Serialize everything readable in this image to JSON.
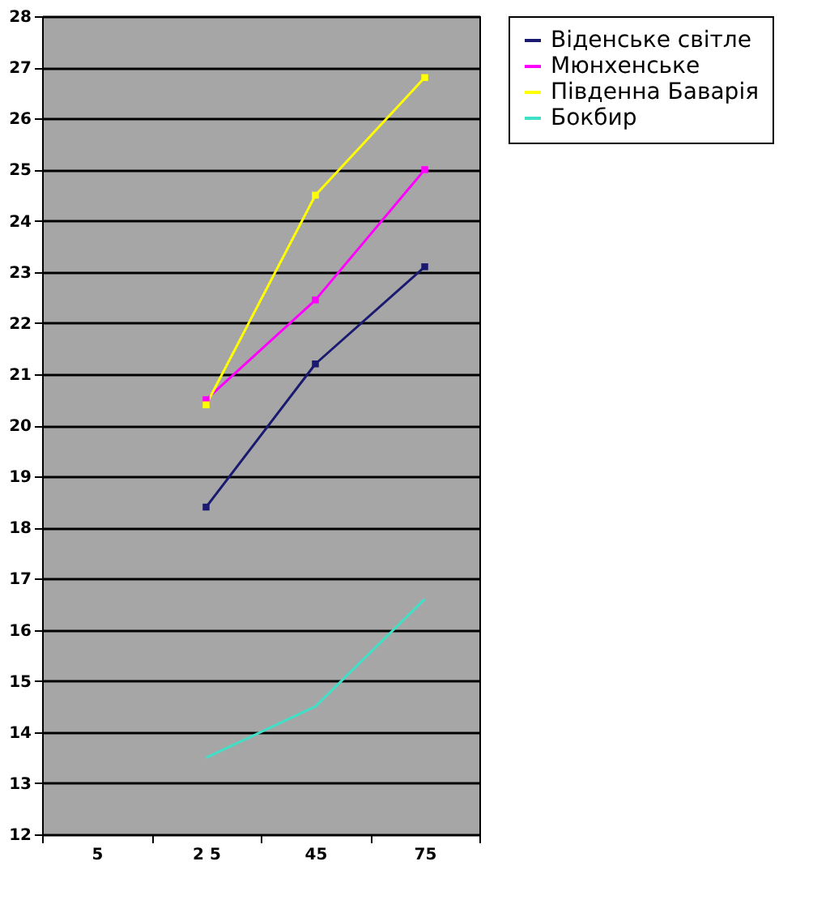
{
  "chart_data": {
    "type": "line",
    "categories": [
      "5",
      "2 5",
      "45",
      "75"
    ],
    "series": [
      {
        "name": "Віденське світле",
        "color": "#1a1a70",
        "values": [
          null,
          18.4,
          21.2,
          23.1
        ]
      },
      {
        "name": "Мюнхенське",
        "color": "#ff00ff",
        "values": [
          null,
          20.5,
          22.45,
          25.0
        ]
      },
      {
        "name": "Південна Баварія",
        "color": "#ffff00",
        "values": [
          null,
          20.4,
          24.5,
          26.8
        ]
      },
      {
        "name": "Бокбир",
        "color": "#40e0c8",
        "values": [
          null,
          13.5,
          14.5,
          16.6
        ],
        "marker": "none"
      }
    ],
    "ylim": [
      12,
      28
    ],
    "yticks": [
      12,
      13,
      14,
      15,
      16,
      17,
      18,
      19,
      20,
      21,
      22,
      23,
      24,
      25,
      26,
      27,
      28
    ],
    "grid": "y",
    "legend": "right",
    "marker": "square"
  }
}
